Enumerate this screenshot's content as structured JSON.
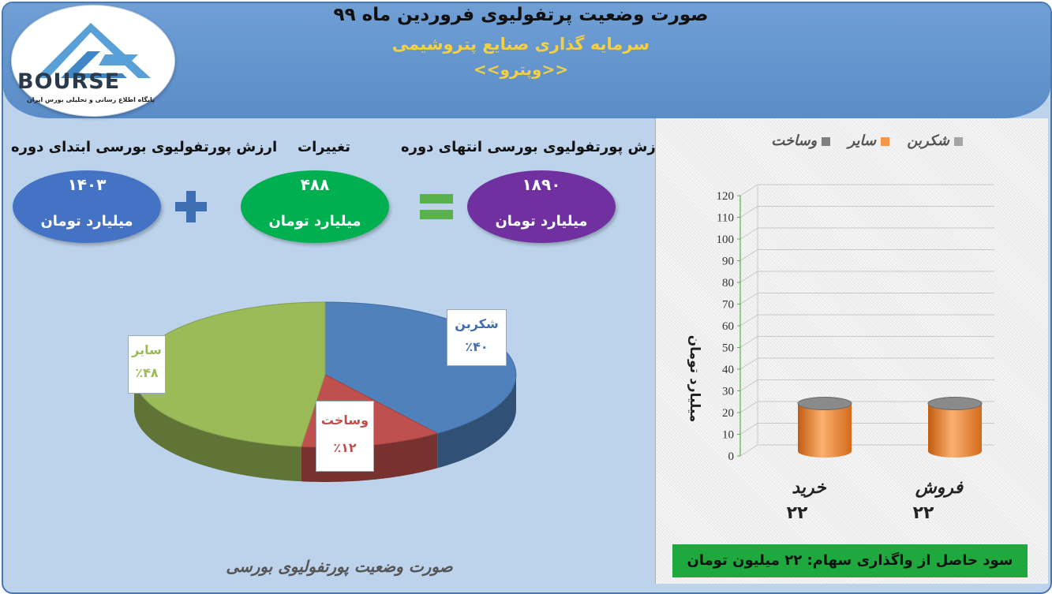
{
  "header": {
    "title": "صورت وضعیت پرتفولیوی فروردین ماه ۹۹",
    "company": "سرمایه گذاری صنایع پتروشیمی",
    "ticker": "<<وپترو>>"
  },
  "logo": {
    "name": "BOURSE",
    "subtitle": "پایگاه اطلاع رسانی و تحلیلی بورس ایران"
  },
  "summary": {
    "start": {
      "label": "ارزش پورتفولیوی بورسی ابتدای دوره",
      "value": "۱۴۰۳",
      "unit": "میلیارد تومان",
      "color": "#4472c4"
    },
    "change": {
      "label": "تغییرات",
      "value": "۴۸۸",
      "unit": "میلیارد تومان",
      "color": "#00b050"
    },
    "end": {
      "label": "ارزش پورتفولیوی بورسی انتهای دوره",
      "value": "۱۸۹۰",
      "unit": "میلیارد تومان",
      "color": "#7030a0"
    }
  },
  "pie_caption": "صورت وضعیت پورتفولیوی بورسی",
  "profit_note": "سود حاصل از واگذاری سهام: ۲۲ میلیون تومان",
  "chart_data": [
    {
      "type": "pie",
      "categories": [
        "شکربن",
        "وساخت",
        "سایر"
      ],
      "values": [
        40,
        12,
        48
      ],
      "labels": [
        "٪۴۰",
        "٪۱۲",
        "٪۴۸"
      ],
      "colors": [
        "#4f81bd",
        "#c0504d",
        "#9bbb59"
      ]
    },
    {
      "type": "bar",
      "categories": [
        "خرید",
        "فروش"
      ],
      "category_values": [
        "۲۲",
        "۲۲"
      ],
      "legend": [
        "شکربن",
        "سایر",
        "وساخت"
      ],
      "legend_colors": [
        "#a5a5a5",
        "#f79646",
        "#7f7f7f"
      ],
      "series": [
        {
          "name": "سایر",
          "values": [
            22,
            22
          ],
          "color": "#f79646"
        }
      ],
      "ylabel": "میلیارد تومان",
      "ylim": [
        0,
        120
      ],
      "yticks": [
        0,
        10,
        20,
        30,
        40,
        50,
        60,
        70,
        80,
        90,
        100,
        110,
        120
      ]
    }
  ]
}
